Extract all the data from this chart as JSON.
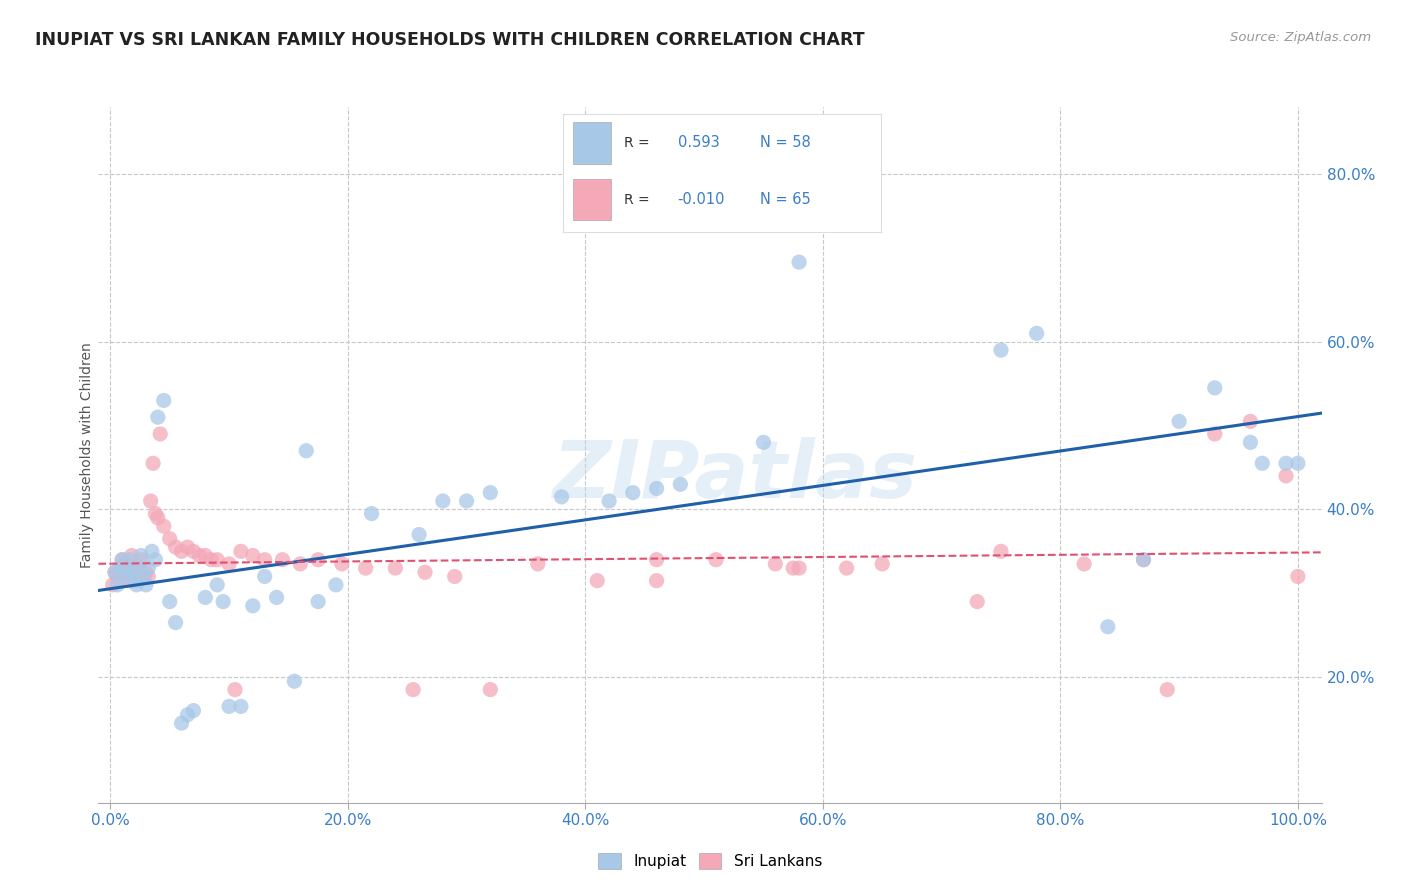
{
  "title": "INUPIAT VS SRI LANKAN FAMILY HOUSEHOLDS WITH CHILDREN CORRELATION CHART",
  "source": "Source: ZipAtlas.com",
  "ylabel": "Family Households with Children",
  "watermark": "ZIPatlas",
  "legend_label_inupiat": "Inupiat",
  "legend_label_srilankan": "Sri Lankans",
  "inupiat_color": "#A8C8E8",
  "srilankan_color": "#F4A8B8",
  "inupiat_line_color": "#2060A8",
  "srilankan_line_color": "#E05070",
  "background_color": "#FFFFFF",
  "grid_color": "#C8C8C8",
  "axis_label_color": "#3A7EC8",
  "title_color": "#222222",
  "ylabel_color": "#555555",
  "xlim": [
    -0.01,
    1.02
  ],
  "ylim": [
    0.05,
    0.88
  ],
  "xtick_labels": [
    "0.0%",
    "",
    "",
    "",
    "",
    "",
    "",
    "",
    "",
    "20.0%",
    "",
    "",
    "",
    "",
    "",
    "",
    "",
    "",
    "",
    "40.0%",
    "",
    "",
    "",
    "",
    "",
    "",
    "",
    "",
    "",
    "60.0%",
    "",
    "",
    "",
    "",
    "",
    "",
    "",
    "",
    "",
    "80.0%",
    "",
    "",
    "",
    "",
    "",
    "",
    "",
    "",
    "",
    "100.0%"
  ],
  "xtick_vals": [
    0.0,
    0.2,
    0.4,
    0.6,
    0.8,
    1.0
  ],
  "xtick_display": [
    "0.0%",
    "20.0%",
    "40.0%",
    "60.0%",
    "80.0%",
    "100.0%"
  ],
  "ytick_labels": [
    "20.0%",
    "40.0%",
    "60.0%",
    "80.0%"
  ],
  "ytick_vals": [
    0.2,
    0.4,
    0.6,
    0.8
  ],
  "inupiat_x": [
    0.004,
    0.006,
    0.008,
    0.01,
    0.012,
    0.014,
    0.016,
    0.018,
    0.02,
    0.022,
    0.024,
    0.026,
    0.028,
    0.03,
    0.032,
    0.035,
    0.038,
    0.04,
    0.045,
    0.05,
    0.055,
    0.06,
    0.065,
    0.07,
    0.08,
    0.09,
    0.095,
    0.1,
    0.11,
    0.12,
    0.13,
    0.14,
    0.155,
    0.165,
    0.175,
    0.19,
    0.22,
    0.26,
    0.28,
    0.3,
    0.32,
    0.38,
    0.42,
    0.44,
    0.46,
    0.48,
    0.55,
    0.58,
    0.75,
    0.78,
    0.84,
    0.87,
    0.9,
    0.93,
    0.96,
    0.97,
    0.99,
    1.0
  ],
  "inupiat_y": [
    0.325,
    0.31,
    0.33,
    0.34,
    0.32,
    0.33,
    0.34,
    0.325,
    0.315,
    0.31,
    0.33,
    0.345,
    0.32,
    0.31,
    0.33,
    0.35,
    0.34,
    0.51,
    0.53,
    0.29,
    0.265,
    0.145,
    0.155,
    0.16,
    0.295,
    0.31,
    0.29,
    0.165,
    0.165,
    0.285,
    0.32,
    0.295,
    0.195,
    0.47,
    0.29,
    0.31,
    0.395,
    0.37,
    0.41,
    0.41,
    0.42,
    0.415,
    0.41,
    0.42,
    0.425,
    0.43,
    0.48,
    0.695,
    0.59,
    0.61,
    0.26,
    0.34,
    0.505,
    0.545,
    0.48,
    0.455,
    0.455,
    0.455
  ],
  "srilankan_x": [
    0.002,
    0.004,
    0.006,
    0.008,
    0.01,
    0.012,
    0.014,
    0.016,
    0.018,
    0.02,
    0.022,
    0.024,
    0.026,
    0.028,
    0.03,
    0.032,
    0.034,
    0.036,
    0.038,
    0.04,
    0.045,
    0.05,
    0.055,
    0.06,
    0.065,
    0.07,
    0.075,
    0.08,
    0.085,
    0.09,
    0.1,
    0.11,
    0.12,
    0.13,
    0.145,
    0.16,
    0.175,
    0.195,
    0.215,
    0.24,
    0.265,
    0.29,
    0.32,
    0.36,
    0.41,
    0.46,
    0.51,
    0.56,
    0.58,
    0.62,
    0.65,
    0.73,
    0.75,
    0.82,
    0.87,
    0.89,
    0.93,
    0.96,
    0.99,
    1.0,
    0.042,
    0.105,
    0.255,
    0.46,
    0.575
  ],
  "srilankan_y": [
    0.31,
    0.325,
    0.32,
    0.315,
    0.34,
    0.335,
    0.325,
    0.315,
    0.345,
    0.33,
    0.32,
    0.33,
    0.34,
    0.32,
    0.325,
    0.32,
    0.41,
    0.455,
    0.395,
    0.39,
    0.38,
    0.365,
    0.355,
    0.35,
    0.355,
    0.35,
    0.345,
    0.345,
    0.34,
    0.34,
    0.335,
    0.35,
    0.345,
    0.34,
    0.34,
    0.335,
    0.34,
    0.335,
    0.33,
    0.33,
    0.325,
    0.32,
    0.185,
    0.335,
    0.315,
    0.34,
    0.34,
    0.335,
    0.33,
    0.33,
    0.335,
    0.29,
    0.35,
    0.335,
    0.34,
    0.185,
    0.49,
    0.505,
    0.44,
    0.32,
    0.49,
    0.185,
    0.185,
    0.315,
    0.33
  ]
}
